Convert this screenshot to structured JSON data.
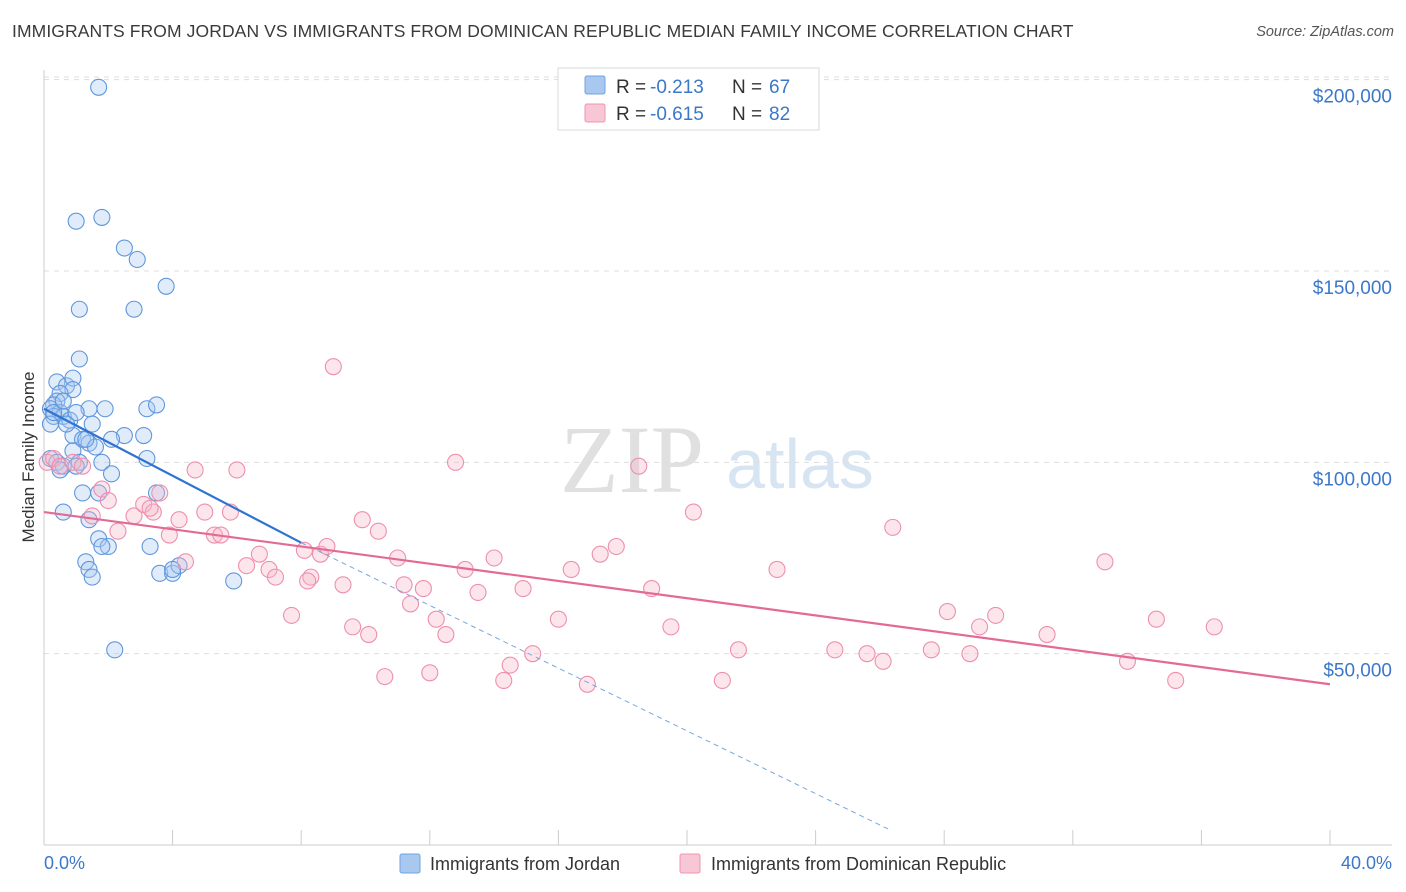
{
  "header": {
    "title": "IMMIGRANTS FROM JORDAN VS IMMIGRANTS FROM DOMINICAN REPUBLIC MEDIAN FAMILY INCOME CORRELATION CHART",
    "source": "Source: ZipAtlas.com"
  },
  "watermark": {
    "zip": "ZIP",
    "atlas": "atlas"
  },
  "legend": {
    "items": [
      {
        "r_label": "R =",
        "r_value": "-0.213",
        "n_label": "N =",
        "n_value": "67",
        "color": "#a9c8f0"
      },
      {
        "r_label": "R =",
        "r_value": "-0.615",
        "n_label": "N =",
        "n_value": "82",
        "color": "#f7b7c8"
      }
    ]
  },
  "chart_data": {
    "type": "scatter",
    "title": "IMMIGRANTS FROM JORDAN VS IMMIGRANTS FROM DOMINICAN REPUBLIC MEDIAN FAMILY INCOME CORRELATION CHART",
    "xlabel": "",
    "ylabel": "Median Family Income",
    "xlim": [
      0,
      40
    ],
    "ylim": [
      0,
      205000
    ],
    "x_tick_labels": [
      "0.0%",
      "40.0%"
    ],
    "y_ticks": [
      {
        "value": 50000,
        "label": "$50,000"
      },
      {
        "value": 100000,
        "label": "$100,000"
      },
      {
        "value": 150000,
        "label": "$150,000"
      },
      {
        "value": 200000,
        "label": "$200,000"
      }
    ],
    "series": [
      {
        "name": "Immigrants from Jordan",
        "color": "#6fa3e3",
        "line_color": "#2f74d0",
        "trend": {
          "x0": 0.0,
          "y0": 114000,
          "x1": 8.0,
          "y1": 79000,
          "dash_x1": 26.3,
          "dash_y1": 4000
        },
        "points": [
          [
            1.7,
            198000
          ],
          [
            1.0,
            163000
          ],
          [
            1.8,
            164000
          ],
          [
            2.5,
            156000
          ],
          [
            2.9,
            153000
          ],
          [
            3.8,
            146000
          ],
          [
            1.1,
            140000
          ],
          [
            2.8,
            140000
          ],
          [
            1.1,
            127000
          ],
          [
            0.4,
            121000
          ],
          [
            0.7,
            120000
          ],
          [
            0.9,
            122000
          ],
          [
            0.9,
            119000
          ],
          [
            0.5,
            118000
          ],
          [
            0.4,
            116000
          ],
          [
            0.3,
            115000
          ],
          [
            0.2,
            114000
          ],
          [
            0.5,
            113000
          ],
          [
            0.3,
            112000
          ],
          [
            0.6,
            112000
          ],
          [
            1.4,
            114000
          ],
          [
            1.9,
            114000
          ],
          [
            0.8,
            111000
          ],
          [
            0.2,
            110000
          ],
          [
            1.5,
            110000
          ],
          [
            3.2,
            114000
          ],
          [
            3.5,
            115000
          ],
          [
            0.9,
            107000
          ],
          [
            1.2,
            106000
          ],
          [
            2.5,
            107000
          ],
          [
            3.1,
            107000
          ],
          [
            1.4,
            105000
          ],
          [
            2.1,
            106000
          ],
          [
            1.6,
            104000
          ],
          [
            0.9,
            103000
          ],
          [
            0.2,
            101000
          ],
          [
            0.4,
            100000
          ],
          [
            0.6,
            99000
          ],
          [
            1.1,
            100000
          ],
          [
            1.8,
            100000
          ],
          [
            3.2,
            101000
          ],
          [
            0.5,
            98000
          ],
          [
            1.0,
            99000
          ],
          [
            2.1,
            97000
          ],
          [
            1.2,
            92000
          ],
          [
            1.7,
            92000
          ],
          [
            3.5,
            92000
          ],
          [
            0.6,
            87000
          ],
          [
            1.4,
            85000
          ],
          [
            1.7,
            80000
          ],
          [
            2.0,
            78000
          ],
          [
            1.8,
            78000
          ],
          [
            3.3,
            78000
          ],
          [
            1.3,
            74000
          ],
          [
            1.4,
            72000
          ],
          [
            1.5,
            70000
          ],
          [
            3.6,
            71000
          ],
          [
            4.0,
            71000
          ],
          [
            4.2,
            73000
          ],
          [
            5.9,
            69000
          ],
          [
            2.2,
            51000
          ],
          [
            0.3,
            113000
          ],
          [
            0.6,
            116000
          ],
          [
            1.0,
            113000
          ],
          [
            0.7,
            110000
          ],
          [
            1.3,
            106000
          ],
          [
            4.0,
            72000
          ]
        ]
      },
      {
        "name": "Immigrants from Dominican Republic",
        "color": "#f093b0",
        "line_color": "#e36a95",
        "trend": {
          "x0": 0.0,
          "y0": 87000,
          "x1": 40.0,
          "y1": 42000
        },
        "points": [
          [
            0.1,
            100000
          ],
          [
            0.3,
            101000
          ],
          [
            0.5,
            99000
          ],
          [
            0.9,
            100000
          ],
          [
            1.2,
            99000
          ],
          [
            1.5,
            86000
          ],
          [
            1.8,
            93000
          ],
          [
            2.0,
            90000
          ],
          [
            2.3,
            82000
          ],
          [
            2.8,
            86000
          ],
          [
            3.1,
            89000
          ],
          [
            3.4,
            87000
          ],
          [
            3.6,
            92000
          ],
          [
            3.9,
            81000
          ],
          [
            4.2,
            85000
          ],
          [
            4.4,
            74000
          ],
          [
            4.7,
            98000
          ],
          [
            5.0,
            87000
          ],
          [
            5.3,
            81000
          ],
          [
            5.5,
            81000
          ],
          [
            5.8,
            87000
          ],
          [
            6.0,
            98000
          ],
          [
            6.3,
            73000
          ],
          [
            6.7,
            76000
          ],
          [
            7.0,
            72000
          ],
          [
            7.2,
            70000
          ],
          [
            7.7,
            60000
          ],
          [
            8.1,
            77000
          ],
          [
            8.3,
            70000
          ],
          [
            8.6,
            76000
          ],
          [
            8.8,
            78000
          ],
          [
            9.0,
            125000
          ],
          [
            9.3,
            68000
          ],
          [
            9.6,
            57000
          ],
          [
            9.9,
            85000
          ],
          [
            10.1,
            55000
          ],
          [
            10.4,
            82000
          ],
          [
            10.6,
            44000
          ],
          [
            11.0,
            75000
          ],
          [
            11.2,
            68000
          ],
          [
            11.4,
            63000
          ],
          [
            11.8,
            67000
          ],
          [
            12.0,
            45000
          ],
          [
            12.2,
            59000
          ],
          [
            12.5,
            55000
          ],
          [
            12.8,
            100000
          ],
          [
            13.1,
            72000
          ],
          [
            13.5,
            66000
          ],
          [
            14.0,
            75000
          ],
          [
            14.3,
            43000
          ],
          [
            14.5,
            47000
          ],
          [
            14.9,
            67000
          ],
          [
            15.2,
            50000
          ],
          [
            16.0,
            59000
          ],
          [
            16.4,
            72000
          ],
          [
            16.9,
            42000
          ],
          [
            17.3,
            76000
          ],
          [
            17.8,
            78000
          ],
          [
            18.5,
            99000
          ],
          [
            18.9,
            67000
          ],
          [
            19.5,
            57000
          ],
          [
            20.2,
            87000
          ],
          [
            21.1,
            43000
          ],
          [
            21.6,
            51000
          ],
          [
            22.8,
            72000
          ],
          [
            24.6,
            51000
          ],
          [
            25.6,
            50000
          ],
          [
            26.1,
            48000
          ],
          [
            26.4,
            83000
          ],
          [
            27.6,
            51000
          ],
          [
            28.1,
            61000
          ],
          [
            28.8,
            50000
          ],
          [
            29.1,
            57000
          ],
          [
            29.6,
            60000
          ],
          [
            31.2,
            55000
          ],
          [
            33.0,
            74000
          ],
          [
            33.7,
            48000
          ],
          [
            34.6,
            59000
          ],
          [
            35.2,
            43000
          ],
          [
            36.4,
            57000
          ],
          [
            3.3,
            88000
          ],
          [
            8.2,
            69000
          ]
        ]
      }
    ]
  }
}
